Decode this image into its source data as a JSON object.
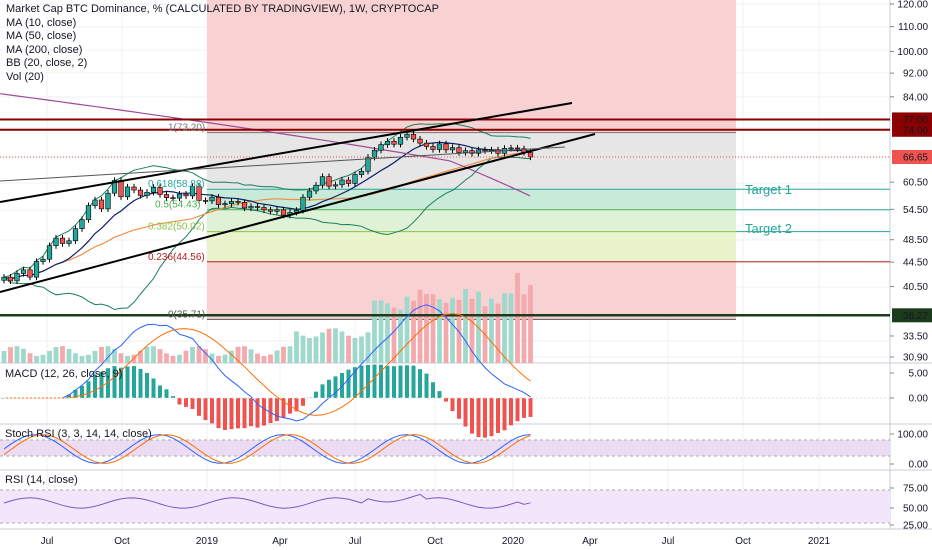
{
  "legend": {
    "title": "Market Cap BTC Dominance, % (CALCULATED BY TRADINGVIEW), 1W, CRYPTOCAP",
    "studies": [
      "MA (10, close)",
      "MA (50, close)",
      "MA (200, close)",
      "BB (20, close, 2)",
      "Vol (20)"
    ]
  },
  "panes": {
    "macd": "MACD (12, 26, close, 9)",
    "stoch": "Stoch RSI (3, 3, 14, 14, close)",
    "rsi": "RSI (14, close)"
  },
  "targets": {
    "t1": "Target 1",
    "t2": "Target 2"
  },
  "colors": {
    "candle_up": "#26a69a",
    "candle_down": "#ef5350",
    "vol_up": "#9fd9cc",
    "vol_down": "#f4a9ac",
    "red_zone": "#f8d2d3",
    "grey_zone": "#e6e6e6",
    "green_zone": "#c8ebd9",
    "lime_zone": "#e9f4cc",
    "trend_line": "#000000",
    "horizontal_red": "#8b0000",
    "horizontal_green": "#1b3b1b",
    "ma10": "#0b1e6b",
    "ma50": "#f0904a",
    "ma200": "#a14b96",
    "bb": "#18805a",
    "macd_line": "#2962ff",
    "signal_line": "#ff6d00",
    "stoch_k": "#2962ff",
    "stoch_d": "#ff6d00",
    "rsi_line": "#7e57c2"
  },
  "chart_data": [
    {
      "type": "candlestick",
      "title": "Market Cap BTC Dominance, % (CALCULATED BY TRADINGVIEW), 1W, CRYPTOCAP",
      "x_tick_labels": [
        "Jul",
        "Oct",
        "2019",
        "Apr",
        "Jul",
        "Oct",
        "2020",
        "Apr",
        "Jul",
        "Oct",
        "2021"
      ],
      "y_scale": "log",
      "y_ticks": [
        120.0,
        110.0,
        100.0,
        92.0,
        84.0,
        77.0,
        74.0,
        66.65,
        60.5,
        54.5,
        48.5,
        44.5,
        40.5,
        36.27,
        33.5,
        30.9
      ],
      "highlighted_prices": {
        "resistance_1": 77.0,
        "resistance_2": 74.0,
        "last": 66.65,
        "support": 36.27
      },
      "weekly_closes": [
        42,
        41.4,
        42.6,
        43.2,
        42,
        44.6,
        45,
        47.4,
        48.8,
        47.8,
        48.3,
        50.6,
        52.4,
        55.3,
        56.5,
        54.6,
        58,
        60.9,
        57.2,
        59.4,
        58.7,
        57.5,
        58.2,
        59.3,
        57.7,
        57,
        56.9,
        57.8,
        57.4,
        59.5,
        56.4,
        56.3,
        57.1,
        55.5,
        55.7,
        56.2,
        56,
        54.8,
        55.1,
        54.9,
        54.4,
        54.1,
        54.4,
        53.3,
        53.9,
        54.3,
        57.1,
        58.5,
        59.8,
        61.8,
        59.6,
        59.9,
        61,
        60.2,
        62.3,
        63.1,
        66.6,
        68.4,
        69.9,
        70.8,
        70,
        71.9,
        72.7,
        71.4,
        70.3,
        69.4,
        68.6,
        70.1,
        68.5,
        69.1,
        67.8,
        68.3,
        67.6,
        68.5,
        68.3,
        68.5,
        67.6,
        68.9,
        69,
        68.8,
        67.8,
        66.65
      ],
      "fibonacci": [
        {
          "ratio": "1",
          "label": "1(73.20)",
          "value": 73.2
        },
        {
          "ratio": "0.618",
          "label": "0.618(58.88)",
          "value": 58.88
        },
        {
          "ratio": "0.5",
          "label": "0.5(54.43)",
          "value": 54.43
        },
        {
          "ratio": "0.382",
          "label": "0.382(50.02)",
          "value": 50.02
        },
        {
          "ratio": "0.236",
          "label": "0.236(44.56)",
          "value": 44.56
        },
        {
          "ratio": "0",
          "label": "0(35.71)",
          "value": 35.71
        }
      ],
      "series": [
        {
          "name": "MA (10, close)",
          "color": "#0b1e6b"
        },
        {
          "name": "MA (50, close)",
          "color": "#f0904a"
        },
        {
          "name": "MA (200, close)",
          "color": "#a14b96"
        },
        {
          "name": "BB (20, close, 2)",
          "color": "#18805a"
        },
        {
          "name": "Vol (20)",
          "color": "#9fd9cc"
        }
      ]
    },
    {
      "type": "line",
      "title": "MACD (12, 26, close, 9)",
      "y_ticks": [
        5.0,
        0.0
      ]
    },
    {
      "type": "line",
      "title": "Stoch RSI (3, 3, 14, 14, close)",
      "y_ticks": [
        100.0,
        0.0
      ]
    },
    {
      "type": "line",
      "title": "RSI (14, close)",
      "y_ticks": [
        75.0,
        50.0,
        25.0
      ]
    }
  ]
}
